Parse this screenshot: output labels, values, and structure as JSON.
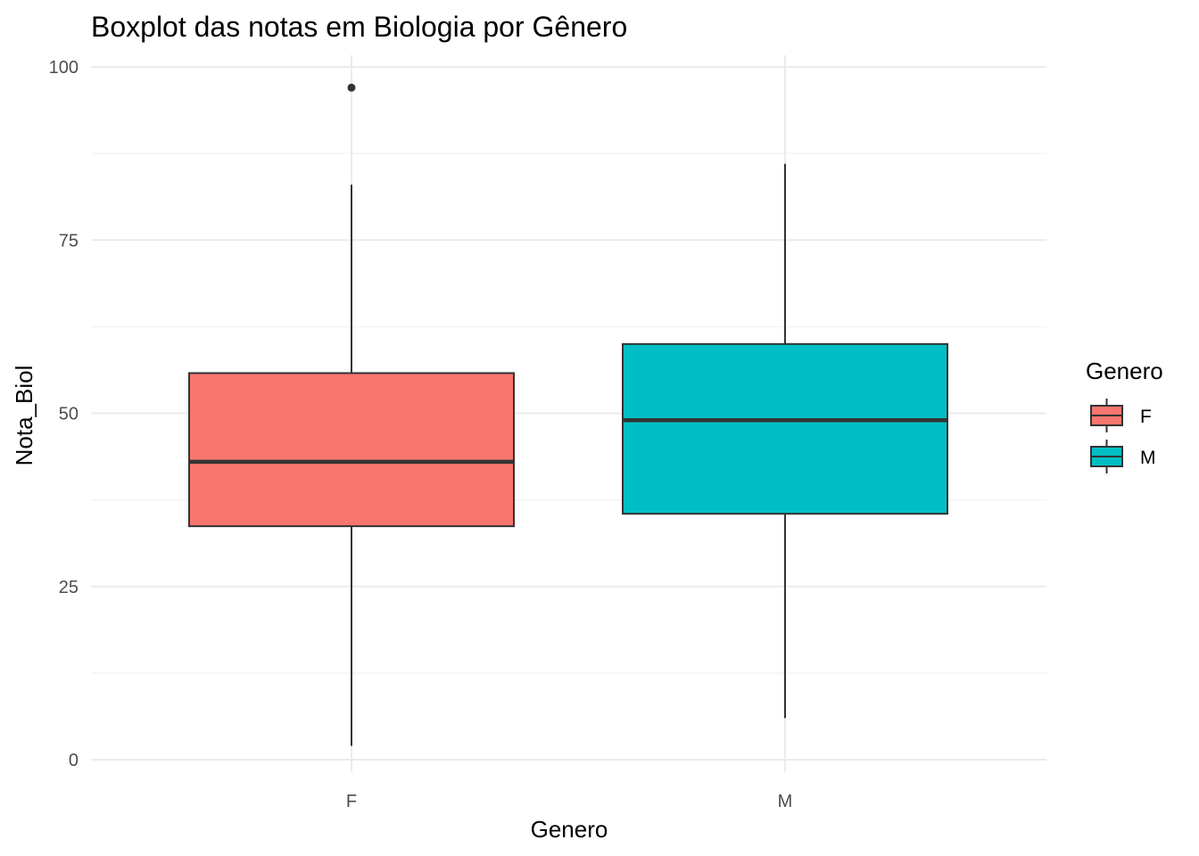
{
  "chart_data": {
    "type": "boxplot",
    "title": "Boxplot das notas em Biologia por Gênero",
    "xlabel": "Genero",
    "ylabel": "Nota_Biol",
    "ylim": [
      0,
      100
    ],
    "y_ticks": [
      0,
      25,
      50,
      75,
      100
    ],
    "y_tick_labels": [
      "0",
      "25",
      "50",
      "75",
      "100"
    ],
    "grid": true,
    "legend": {
      "title": "Genero",
      "placement": "right",
      "entries": [
        {
          "label": "F",
          "color": "#F8766D"
        },
        {
          "label": "M",
          "color": "#00BFC4"
        }
      ]
    },
    "categories": [
      "F",
      "M"
    ],
    "series": [
      {
        "name": "F",
        "color": "#F8766D",
        "whisker_low": 2,
        "q1": 33.7,
        "median": 43,
        "q3": 55.8,
        "whisker_high": 83,
        "outliers": [
          97
        ]
      },
      {
        "name": "M",
        "color": "#00BFC4",
        "whisker_low": 6,
        "q1": 35.5,
        "median": 49,
        "q3": 60,
        "whisker_high": 86,
        "outliers": []
      }
    ]
  }
}
